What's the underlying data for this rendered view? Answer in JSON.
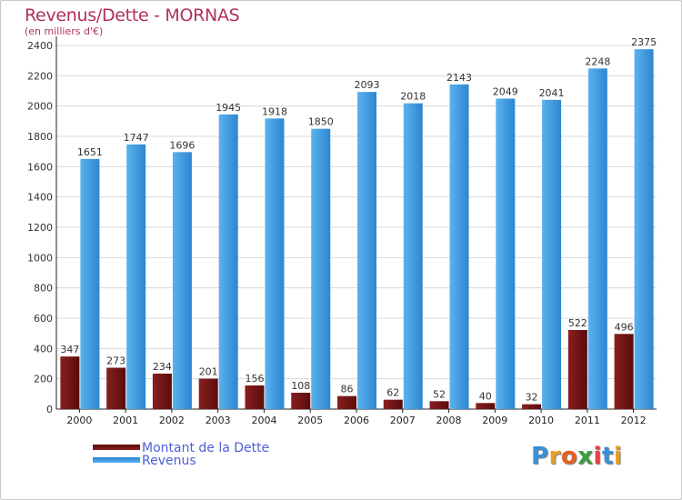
{
  "chart_data": {
    "type": "bar",
    "title": "Revenus/Dette - MORNAS",
    "subtitle": "(en milliers d'€)",
    "categories": [
      "2000",
      "2001",
      "2002",
      "2003",
      "2004",
      "2005",
      "2006",
      "2007",
      "2008",
      "2009",
      "2010",
      "2011",
      "2012"
    ],
    "series": [
      {
        "name": "Montant de la Dette",
        "color": "#7a1a1a",
        "values": [
          347,
          273,
          234,
          201,
          156,
          108,
          86,
          62,
          52,
          40,
          32,
          522,
          496
        ]
      },
      {
        "name": "Revenus",
        "color": "#4aa3e8",
        "values": [
          1651,
          1747,
          1696,
          1945,
          1918,
          1850,
          2093,
          2018,
          2143,
          2049,
          2041,
          2248,
          2375
        ]
      }
    ],
    "ylim": [
      0,
      2400
    ],
    "yticks": [
      0,
      200,
      400,
      600,
      800,
      1000,
      1200,
      1400,
      1600,
      1800,
      2000,
      2200,
      2400
    ],
    "xlabel": "",
    "ylabel": "",
    "grid": true,
    "legend": "bottom-left"
  },
  "brand": {
    "letters": [
      "P",
      "r",
      "o",
      "x",
      "i",
      "t",
      "i"
    ],
    "colors": [
      "#3a8fd8",
      "#e8a020",
      "#e86020",
      "#3aa040",
      "#e84040",
      "#3a8fd8",
      "#e8a020"
    ]
  }
}
